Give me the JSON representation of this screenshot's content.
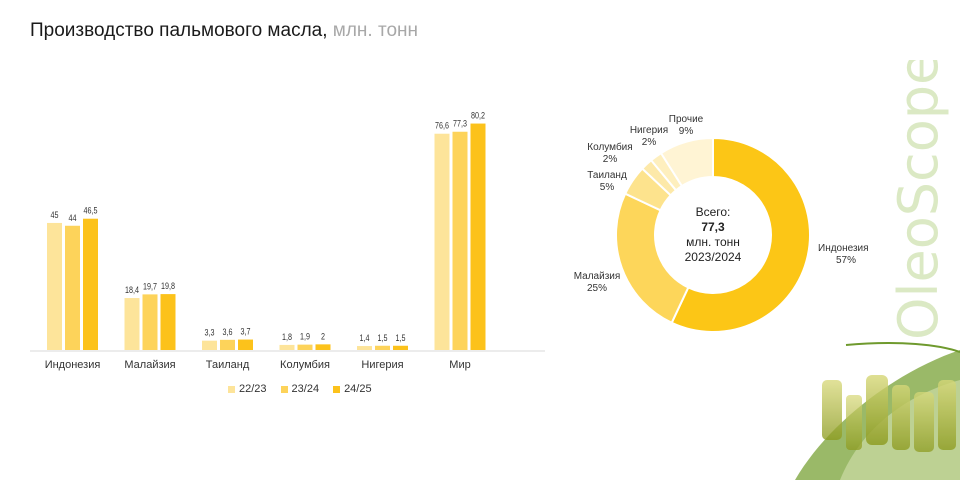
{
  "header": {
    "title": "Производство пальмового масла,",
    "unit": " млн. тонн"
  },
  "brand": {
    "logo_text": "OleoScope",
    "color": "#dbe9c4"
  },
  "chart_data": [
    {
      "type": "bar",
      "categories": [
        "Индонезия",
        "Малайзия",
        "Таиланд",
        "Колумбия",
        "Нигерия",
        "Мир"
      ],
      "series": [
        {
          "name": "22/23",
          "values": [
            "45",
            "18,4",
            "3,3",
            "1,8",
            "1,4",
            "76,6"
          ],
          "color": "#fde49a"
        },
        {
          "name": "23/24",
          "values": [
            "44",
            "19,7",
            "3,6",
            "1,9",
            "1,5",
            "77,3"
          ],
          "color": "#fdd35a"
        },
        {
          "name": "24/25",
          "values": [
            "46,5",
            "19,8",
            "3,7",
            "2",
            "1,5",
            "80,2"
          ],
          "color": "#fcc21b"
        }
      ],
      "ylim": [
        0,
        85
      ],
      "legend": "bottom"
    },
    {
      "type": "pie",
      "variant": "donut",
      "slices": [
        {
          "label": "Индонезия",
          "percent": "57%",
          "value": 57,
          "color": "#fcc616"
        },
        {
          "label": "Малайзия",
          "percent": "25%",
          "value": 25,
          "color": "#fdd65a"
        },
        {
          "label": "Таиланд",
          "percent": "5%",
          "value": 5,
          "color": "#fde38d"
        },
        {
          "label": "Колумбия",
          "percent": "2%",
          "value": 2,
          "color": "#fde9a9"
        },
        {
          "label": "Нигерия",
          "percent": "2%",
          "value": 2,
          "color": "#feefbe"
        },
        {
          "label": "Прочие",
          "percent": "9%",
          "value": 9,
          "color": "#fff4d4"
        }
      ],
      "center": {
        "line1": "Всего:",
        "total": "77,3",
        "line2": "млн. тонн",
        "line3": "2023/2024"
      }
    }
  ]
}
